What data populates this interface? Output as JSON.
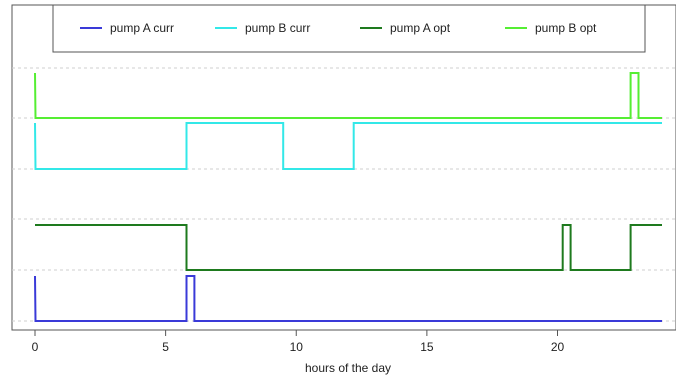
{
  "chart_data": {
    "type": "line",
    "title": "",
    "xlabel": "hours of the day",
    "ylabel": "",
    "xlim": [
      -0.9,
      24.3
    ],
    "xticks": [
      "0",
      "5",
      "10",
      "15",
      "20"
    ],
    "grid": "horizontal dashed",
    "legend_position": "top",
    "series": [
      {
        "name": "pump A curr",
        "color": "#3a3ad8",
        "lane": 0,
        "points": [
          [
            0,
            1
          ],
          [
            0.02,
            0
          ],
          [
            5.8,
            0
          ],
          [
            5.8,
            1
          ],
          [
            6.1,
            1
          ],
          [
            6.1,
            0
          ],
          [
            24,
            0
          ]
        ]
      },
      {
        "name": "pump A opt",
        "color": "#1e7a1e",
        "lane": 1,
        "points": [
          [
            0,
            1
          ],
          [
            5.8,
            1
          ],
          [
            5.8,
            0
          ],
          [
            20.2,
            0
          ],
          [
            20.2,
            1
          ],
          [
            20.5,
            1
          ],
          [
            20.5,
            0
          ],
          [
            22.8,
            0
          ],
          [
            22.8,
            1
          ],
          [
            24,
            1
          ]
        ]
      },
      {
        "name": "pump B curr",
        "color": "#33e8e8",
        "lane": 2,
        "points": [
          [
            0,
            1
          ],
          [
            0.02,
            0
          ],
          [
            5.8,
            0
          ],
          [
            5.8,
            1
          ],
          [
            9.5,
            1
          ],
          [
            9.5,
            0
          ],
          [
            12.2,
            0
          ],
          [
            12.2,
            1
          ],
          [
            24,
            1
          ]
        ]
      },
      {
        "name": "pump B opt",
        "color": "#55ee33",
        "lane": 3,
        "points": [
          [
            0,
            1
          ],
          [
            0.02,
            0
          ],
          [
            22.8,
            0
          ],
          [
            22.8,
            1
          ],
          [
            23.1,
            1
          ],
          [
            23.1,
            0
          ],
          [
            24,
            0
          ]
        ]
      }
    ]
  },
  "legend": {
    "items": [
      {
        "label": "pump A curr",
        "color": "#3a3ad8"
      },
      {
        "label": "pump B curr",
        "color": "#33e8e8"
      },
      {
        "label": "pump A opt",
        "color": "#1e7a1e"
      },
      {
        "label": "pump B opt",
        "color": "#55ee33"
      }
    ]
  }
}
